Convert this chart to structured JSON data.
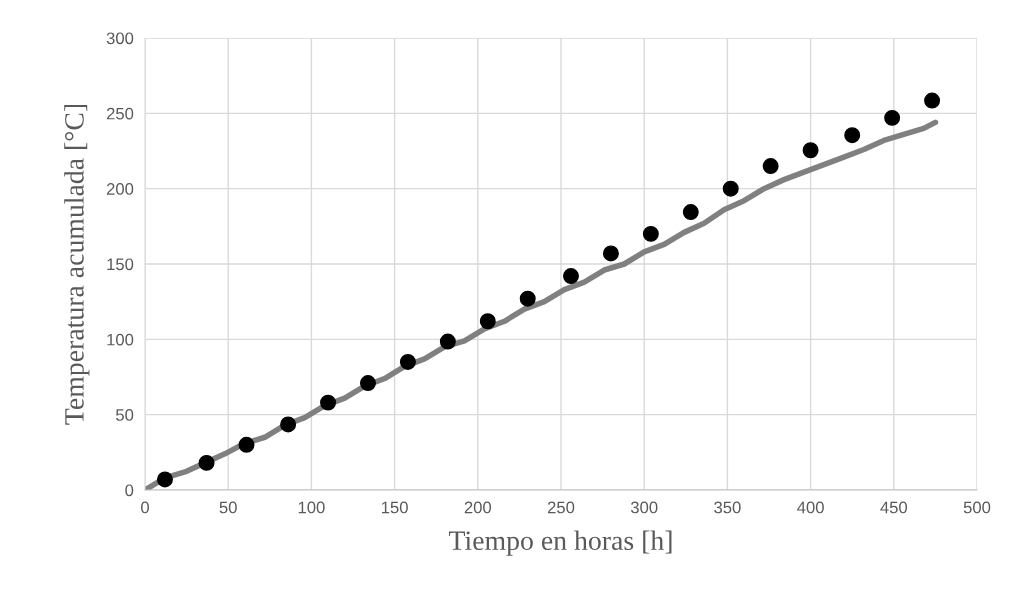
{
  "chart_data": {
    "type": "scatter",
    "xlabel": "Tiempo en horas [h]",
    "ylabel": "Temperatura acumulada [°C]",
    "xlim": [
      0,
      500
    ],
    "ylim": [
      0,
      300
    ],
    "xticks": [
      0,
      50,
      100,
      150,
      200,
      250,
      300,
      350,
      400,
      450,
      500
    ],
    "yticks": [
      0,
      50,
      100,
      150,
      200,
      250,
      300
    ],
    "grid": true,
    "legend": false,
    "series": [
      {
        "type": "line",
        "color": "#808080",
        "marker": "none",
        "line_style": "solid",
        "x": [
          0,
          12,
          24,
          36,
          48,
          60,
          72,
          84,
          96,
          108,
          120,
          132,
          144,
          156,
          168,
          180,
          192,
          204,
          216,
          228,
          240,
          252,
          264,
          276,
          288,
          300,
          312,
          324,
          336,
          348,
          360,
          372,
          384,
          396,
          408,
          420,
          432,
          444,
          456,
          468,
          475
        ],
        "values": [
          0,
          8,
          12,
          18,
          24,
          31,
          35,
          43,
          48,
          56,
          61,
          69,
          74,
          82,
          87,
          95,
          99,
          107,
          112,
          120,
          125,
          133,
          138,
          146,
          150,
          158,
          163,
          171,
          177,
          186,
          192,
          200,
          206,
          211,
          216,
          221,
          226,
          232,
          236,
          240,
          244
        ]
      },
      {
        "color": "#000000",
        "marker": "circle",
        "x": [
          12,
          37,
          61,
          86,
          110,
          134,
          158,
          182,
          206,
          230,
          256,
          280,
          304,
          328,
          352,
          376,
          400,
          425,
          449,
          473
        ],
        "values": [
          7,
          18,
          30,
          43.5,
          58,
          71,
          85,
          98.5,
          112,
          127,
          142,
          157,
          170,
          184.5,
          200,
          215,
          225.5,
          235.5,
          247,
          258.5
        ]
      }
    ]
  }
}
